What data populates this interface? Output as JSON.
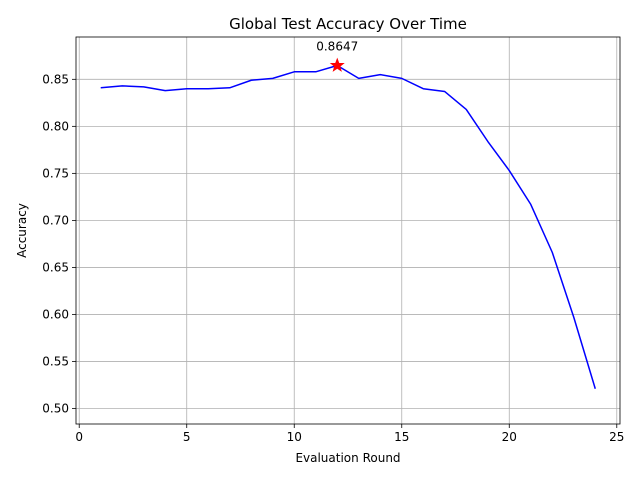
{
  "chart_data": {
    "type": "line",
    "title": "Global Test Accuracy Over Time",
    "xlabel": "Evaluation Round",
    "ylabel": "Accuracy",
    "xlim": [
      -0.15,
      25.15
    ],
    "ylim": [
      0.4835,
      0.895
    ],
    "xticks": [
      0,
      5,
      10,
      15,
      20,
      25
    ],
    "yticks": [
      0.5,
      0.55,
      0.6,
      0.65,
      0.7,
      0.75,
      0.8,
      0.85
    ],
    "grid": true,
    "series": [
      {
        "color": "#0000ff",
        "x": [
          1,
          2,
          3,
          4,
          5,
          6,
          7,
          8,
          9,
          10,
          11,
          12,
          13,
          14,
          15,
          16,
          17,
          18,
          19,
          20,
          21,
          22,
          23,
          24
        ],
        "y": [
          0.841,
          0.843,
          0.842,
          0.838,
          0.84,
          0.84,
          0.841,
          0.849,
          0.851,
          0.858,
          0.858,
          0.8647,
          0.851,
          0.855,
          0.851,
          0.84,
          0.837,
          0.818,
          0.784,
          0.753,
          0.717,
          0.666,
          0.597,
          0.521
        ]
      }
    ],
    "highlight": {
      "x": 12,
      "y": 0.8647,
      "label": "0.8647",
      "marker": "star",
      "color": "#ff0000"
    }
  }
}
